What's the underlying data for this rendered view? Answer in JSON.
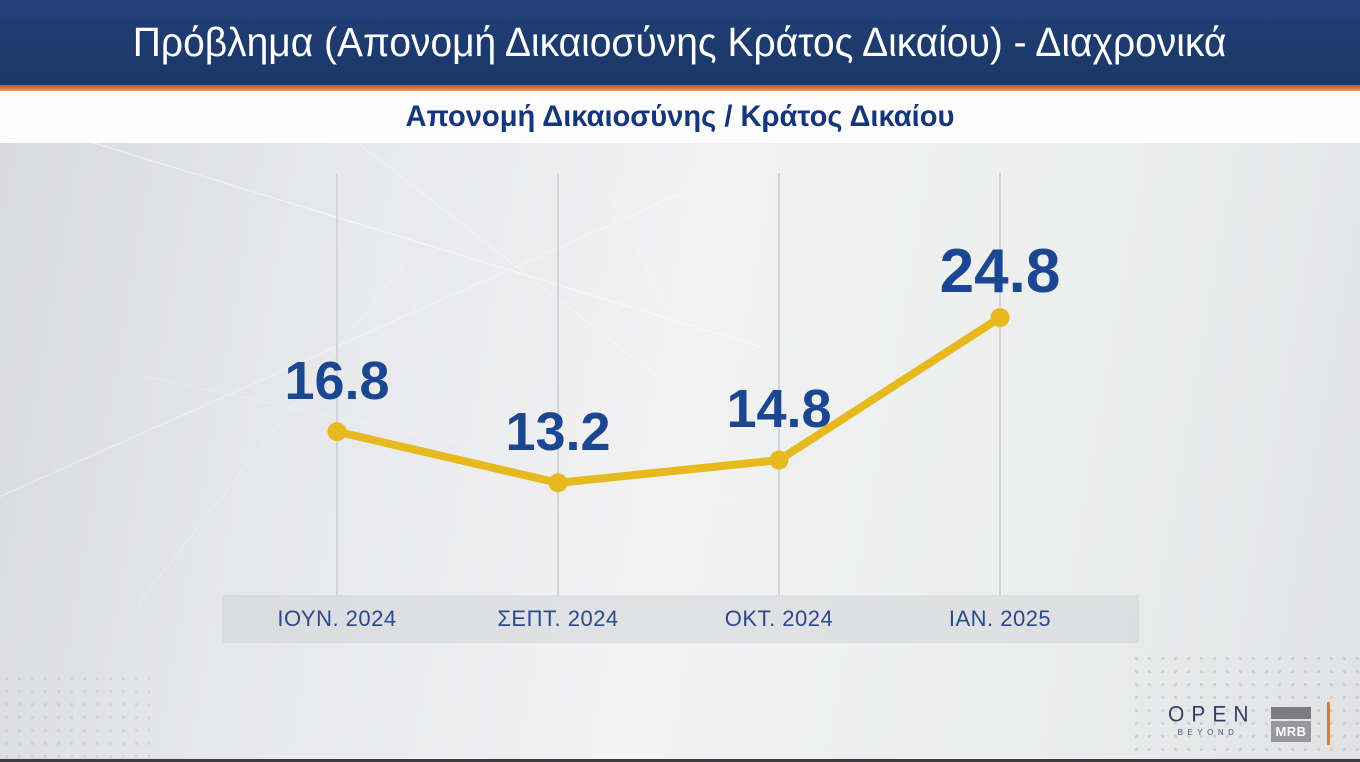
{
  "header": {
    "title": "Πρόβλημα (Απονομή Δικαιοσύνης Κράτος Δικαίου) - Διαχρονικά",
    "background_color": "#1d3a6d",
    "title_color": "#ffffff",
    "divider_color": "#e0722e"
  },
  "subtitle": "Απονομή Δικαιοσύνης / Κράτος Δικαίου",
  "subtitle_color": "#15357d",
  "chart_data": {
    "type": "line",
    "title": "Απονομή Δικαιοσύνης / Κράτος Δικαίου",
    "categories": [
      "ΙΟΥΝ. 2024",
      "ΣΕΠΤ. 2024",
      "ΟΚΤ. 2024",
      "ΙΑΝ. 2025"
    ],
    "values": [
      16.8,
      13.2,
      14.8,
      24.8
    ],
    "series": [
      {
        "name": "Απονομή Δικαιοσύνης / Κράτος Δικαίου",
        "values": [
          16.8,
          13.2,
          14.8,
          24.8
        ]
      }
    ],
    "xlabel": "",
    "ylabel": "",
    "ylim": [
      0,
      35
    ],
    "grid": "vertical-only",
    "legend": false,
    "y_axis_visible": false,
    "data_labels_visible": true,
    "series_color": "#e6b91f",
    "label_color": "#1b4691",
    "tick_color": "#2a4a8c",
    "gridline_color": "#d3d4d7"
  },
  "footer": {
    "open_tv": {
      "name": "OPEN",
      "tagline": "BEYOND"
    },
    "mrb": {
      "name": "MRB"
    },
    "accent_tick_color": "#e87722"
  }
}
